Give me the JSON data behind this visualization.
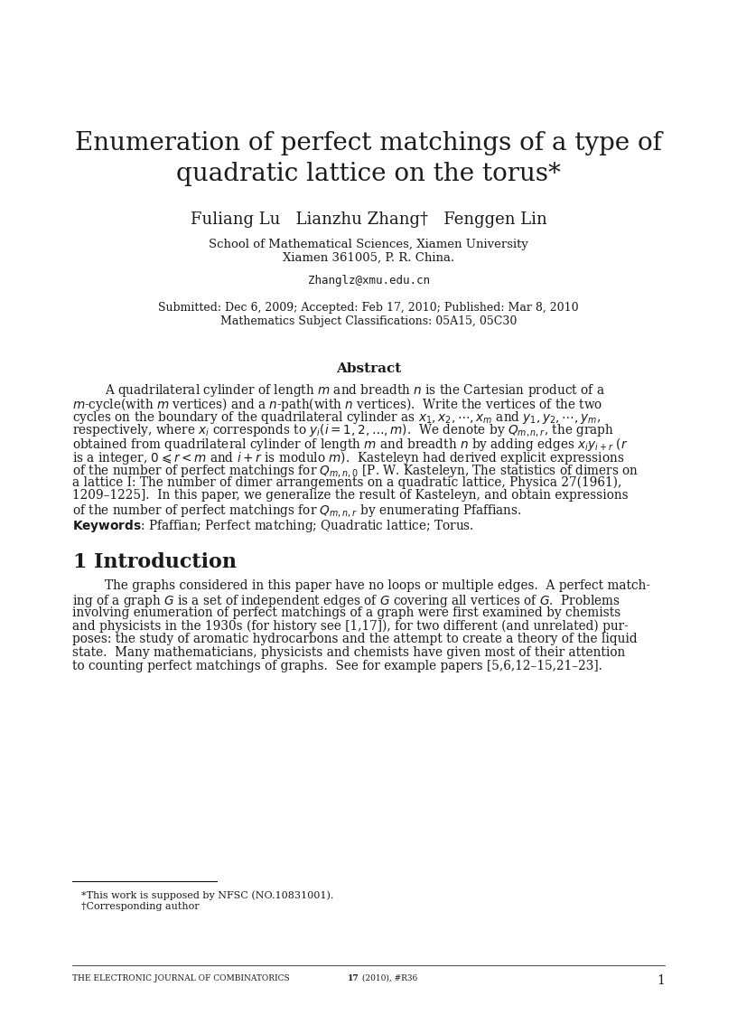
{
  "title_line1": "Enumeration of perfect matchings of a type of",
  "title_line2": "quadratic lattice on the torus*",
  "authors": "Fuliang Lu   Lianzhu Zhang†   Fenggen Lin",
  "affiliation1": "School of Mathematical Sciences, Xiamen University",
  "affiliation2": "Xiamen 361005, P. R. China.",
  "email": "Zhanglz@xmu.edu.cn",
  "submitted": "Submitted: Dec 6, 2009; Accepted: Feb 17, 2010; Published: Mar 8, 2010",
  "classification": "Mathematics Subject Classifications: 05A15, 05C30",
  "abstract_title": "Abstract",
  "abs_line1": "A quadrilateral cylinder of length $m$ and breadth $n$ is the Cartesian product of a",
  "abs_line2": "$m$-cycle(with $m$ vertices) and a $n$-path(with $n$ vertices).  Write the vertices of the two",
  "abs_line3": "cycles on the boundary of the quadrilateral cylinder as $x_1, x_2, \\cdots, x_m$ and $y_1, y_2, \\cdots, y_m$,",
  "abs_line4": "respectively, where $x_i$ corresponds to $y_i(i = 1, 2, \\ldots, m)$.  We denote by $Q_{m,n,r}$, the graph",
  "abs_line5": "obtained from quadrilateral cylinder of length $m$ and breadth $n$ by adding edges $x_iy_{i+r}$ ($r$",
  "abs_line6": "is a integer, $0 \\leqslant r < m$ and $i+r$ is modulo $m$).  Kasteleyn had derived explicit expressions",
  "abs_line7": "of the number of perfect matchings for $Q_{m,n,0}$ [P. W. Kasteleyn, The statistics of dimers on",
  "abs_line8": "a lattice I: The number of dimer arrangements on a quadratic lattice, Physica 27(1961),",
  "abs_line9": "1209–1225].  In this paper, we generalize the result of Kasteleyn, and obtain expressions",
  "abs_line10": "of the number of perfect matchings for $Q_{m,n,r}$ by enumerating Pfaffians.",
  "keywords": "\\textbf{Keywords}: Pfaffian; Perfect matching; Quadratic lattice; Torus.",
  "sec1_num": "1",
  "sec1_title": "Introduction",
  "intro_line1": "The graphs considered in this paper have no loops or multiple edges.  A perfect match-",
  "intro_line2": "ing of a graph $G$ is a set of independent edges of $G$ covering all vertices of $G$.  Problems",
  "intro_line3": "involving enumeration of perfect matchings of a graph were first examined by chemists",
  "intro_line4": "and physicists in the 1930s (for history see [1,17]), for two different (and unrelated) pur-",
  "intro_line5": "poses: the study of aromatic hydrocarbons and the attempt to create a theory of the liquid",
  "intro_line6": "state.  Many mathematicians, physicists and chemists have given most of their attention",
  "intro_line7": "to counting perfect matchings of graphs.  See for example papers [5,6,12–15,21–23].",
  "footnote1": "*This work is supposed by NFSC (NO.10831001).",
  "footnote2": "†Corresponding author",
  "footer_journal": "the electronic journal of combinatorics",
  "footer_bold": "17",
  "footer_rest": " (2010), #R36",
  "footer_page": "1",
  "bg_color": "#ffffff",
  "text_color": "#1a1a1a",
  "title_fontsize": 20,
  "author_fontsize": 13,
  "affil_fontsize": 9.5,
  "email_fontsize": 9,
  "sub_fontsize": 9,
  "abstract_title_fontsize": 11,
  "body_fontsize": 9.8,
  "section_fontsize": 16,
  "footnote_fontsize": 8,
  "footer_fontsize": 7
}
